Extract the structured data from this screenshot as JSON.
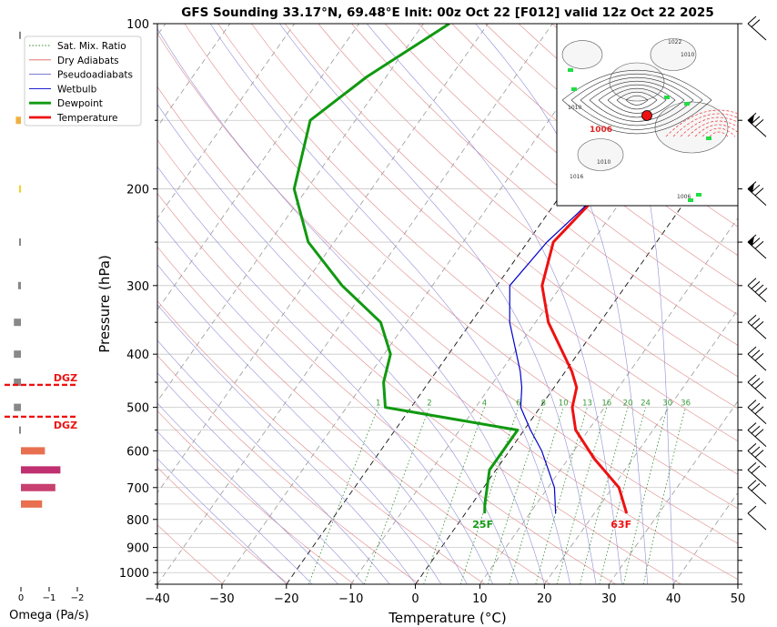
{
  "chart_data": {
    "type": "line",
    "title": "GFS Sounding 33.17°N, 69.48°E Init: 00z Oct 22 [F012] valid 12z Oct 22 2025",
    "xlabel": "Temperature (°C)",
    "ylabel": "Pressure (hPa)",
    "xlim": [
      -40,
      50
    ],
    "ylim": [
      1050,
      100
    ],
    "y_scale": "log",
    "skew": true,
    "x_ticks": [
      "−40",
      "−30",
      "−20",
      "−10",
      "0",
      "10",
      "20",
      "30",
      "40",
      "50"
    ],
    "y_ticks": [
      {
        "p": 100,
        "label": "100"
      },
      {
        "p": 200,
        "label": "200"
      },
      {
        "p": 300,
        "label": "300"
      },
      {
        "p": 400,
        "label": "400"
      },
      {
        "p": 500,
        "label": "500"
      },
      {
        "p": 600,
        "label": "600"
      },
      {
        "p": 700,
        "label": "700"
      },
      {
        "p": 800,
        "label": "800"
      },
      {
        "p": 900,
        "label": "900"
      },
      {
        "p": 1000,
        "label": "1000"
      }
    ],
    "legend": {
      "position": "top-left",
      "entries": [
        {
          "label": "Sat. Mix. Ratio",
          "color": "#2e8b2e",
          "style": "dotted"
        },
        {
          "label": "Dry Adiabats",
          "color": "#e06060",
          "style": "solid"
        },
        {
          "label": "Pseudoadiabats",
          "color": "#6a6ad0",
          "style": "solid"
        },
        {
          "label": "Wetbulb",
          "color": "#0000cc",
          "style": "solid"
        },
        {
          "label": "Dewpoint",
          "color": "#119911",
          "style": "thick"
        },
        {
          "label": "Temperature",
          "color": "#ee1111",
          "style": "thick"
        }
      ]
    },
    "series": [
      {
        "name": "Temperature",
        "color": "#ee1111",
        "points": [
          [
            25,
            780
          ],
          [
            21,
            700
          ],
          [
            14,
            620
          ],
          [
            8,
            550
          ],
          [
            5,
            500
          ],
          [
            3.5,
            460
          ],
          [
            1,
            430
          ],
          [
            -8,
            350
          ],
          [
            -13,
            300
          ],
          [
            -16,
            250
          ],
          [
            -14,
            200
          ],
          [
            -13,
            180
          ],
          [
            -14,
            150
          ],
          [
            -13,
            125
          ],
          [
            -12,
            100
          ]
        ]
      },
      {
        "name": "Dewpoint",
        "color": "#119911",
        "points": [
          [
            3,
            780
          ],
          [
            2,
            750
          ],
          [
            -1,
            650
          ],
          [
            -1,
            600
          ],
          [
            -1,
            550
          ],
          [
            -24,
            500
          ],
          [
            -27,
            450
          ],
          [
            -29,
            400
          ],
          [
            -34,
            350
          ],
          [
            -44,
            300
          ],
          [
            -54,
            250
          ],
          [
            -62,
            200
          ],
          [
            -67,
            150
          ],
          [
            -63,
            125
          ],
          [
            -56,
            100
          ]
        ]
      },
      {
        "name": "Wetbulb",
        "color": "#0000cc",
        "points": [
          [
            14,
            780
          ],
          [
            11,
            700
          ],
          [
            5,
            600
          ],
          [
            1,
            550
          ],
          [
            -3,
            500
          ],
          [
            -5,
            460
          ],
          [
            -7,
            430
          ],
          [
            -14,
            350
          ],
          [
            -18,
            300
          ],
          [
            -17,
            250
          ],
          [
            -14,
            200
          ],
          [
            -13,
            180
          ],
          [
            -14,
            150
          ],
          [
            -13,
            125
          ],
          [
            -12,
            100
          ]
        ]
      }
    ],
    "mixing_ratio_labels": [
      "1",
      "2",
      "4",
      "6",
      "8",
      "10",
      "13",
      "16",
      "20",
      "24",
      "30",
      "36"
    ],
    "annotations": {
      "dewpoint_surface": "25F",
      "temperature_surface": "63F"
    },
    "wind_barbs_column": "right"
  },
  "omega_panel": {
    "xlabel": "Omega (Pa/s)",
    "x_ticks": [
      "0",
      "−1",
      "−2"
    ],
    "dgz_label": "DGZ",
    "dgz_top": 455,
    "dgz_bottom": 520,
    "bars": [
      {
        "p": 105,
        "value": 0.05,
        "color": "#888888"
      },
      {
        "p": 150,
        "value": 0.18,
        "color": "#f0b040"
      },
      {
        "p": 200,
        "value": 0.05,
        "color": "#f5d020"
      },
      {
        "p": 250,
        "value": 0.03,
        "color": "#888888"
      },
      {
        "p": 300,
        "value": 0.1,
        "color": "#888888"
      },
      {
        "p": 350,
        "value": 0.25,
        "color": "#888888"
      },
      {
        "p": 400,
        "value": 0.25,
        "color": "#888888"
      },
      {
        "p": 450,
        "value": 0.25,
        "color": "#888888"
      },
      {
        "p": 500,
        "value": 0.25,
        "color": "#888888"
      },
      {
        "p": 550,
        "value": 0.03,
        "color": "#888888"
      },
      {
        "p": 600,
        "value": -0.85,
        "color": "#e87050"
      },
      {
        "p": 650,
        "value": -1.4,
        "color": "#c03070"
      },
      {
        "p": 700,
        "value": -1.22,
        "color": "#c84070"
      },
      {
        "p": 750,
        "value": -0.75,
        "color": "#e87050"
      }
    ]
  },
  "inset_map": {
    "contour_labels": [
      "1022",
      "1010",
      "1006",
      "1010",
      "1010",
      "1016",
      "1006"
    ]
  }
}
